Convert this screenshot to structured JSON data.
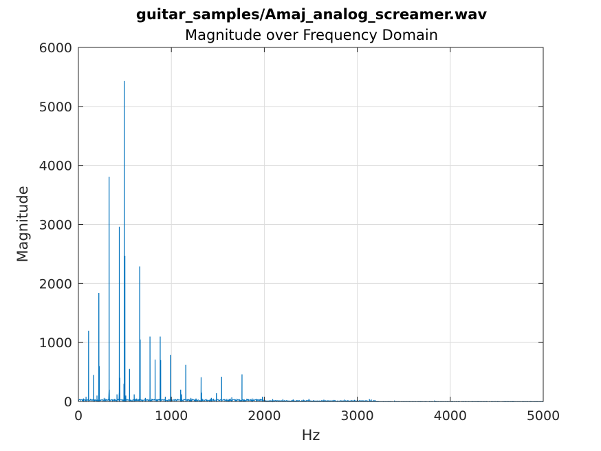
{
  "chart_data": {
    "type": "line",
    "title": "guitar_samples/Amaj_analog_screamer.wav",
    "subtitle": "Magnitude over Frequency Domain",
    "xlabel": "Hz",
    "ylabel": "Magnitude",
    "xlim": [
      0,
      5000
    ],
    "ylim": [
      0,
      6000
    ],
    "xticks": [
      0,
      1000,
      2000,
      3000,
      4000,
      5000
    ],
    "yticks": [
      0,
      1000,
      2000,
      3000,
      4000,
      5000,
      6000
    ],
    "grid": true,
    "series_color": "#0072BD",
    "peaks": [
      {
        "x": 55,
        "y": 50
      },
      {
        "x": 82,
        "y": 80
      },
      {
        "x": 110,
        "y": 1200
      },
      {
        "x": 165,
        "y": 450
      },
      {
        "x": 200,
        "y": 100
      },
      {
        "x": 220,
        "y": 1840
      },
      {
        "x": 225,
        "y": 600
      },
      {
        "x": 277,
        "y": 60
      },
      {
        "x": 330,
        "y": 3810
      },
      {
        "x": 333,
        "y": 200
      },
      {
        "x": 415,
        "y": 120
      },
      {
        "x": 440,
        "y": 2960
      },
      {
        "x": 445,
        "y": 400
      },
      {
        "x": 490,
        "y": 300
      },
      {
        "x": 495,
        "y": 5430
      },
      {
        "x": 500,
        "y": 2470
      },
      {
        "x": 510,
        "y": 100
      },
      {
        "x": 550,
        "y": 550
      },
      {
        "x": 600,
        "y": 120
      },
      {
        "x": 660,
        "y": 2290
      },
      {
        "x": 665,
        "y": 1050
      },
      {
        "x": 720,
        "y": 60
      },
      {
        "x": 770,
        "y": 1100
      },
      {
        "x": 825,
        "y": 710
      },
      {
        "x": 880,
        "y": 1100
      },
      {
        "x": 885,
        "y": 700
      },
      {
        "x": 935,
        "y": 80
      },
      {
        "x": 990,
        "y": 790
      },
      {
        "x": 1100,
        "y": 200
      },
      {
        "x": 1110,
        "y": 120
      },
      {
        "x": 1155,
        "y": 620
      },
      {
        "x": 1210,
        "y": 60
      },
      {
        "x": 1265,
        "y": 50
      },
      {
        "x": 1320,
        "y": 410
      },
      {
        "x": 1325,
        "y": 150
      },
      {
        "x": 1430,
        "y": 60
      },
      {
        "x": 1485,
        "y": 140
      },
      {
        "x": 1540,
        "y": 420
      },
      {
        "x": 1650,
        "y": 70
      },
      {
        "x": 1760,
        "y": 460
      },
      {
        "x": 1870,
        "y": 50
      },
      {
        "x": 1980,
        "y": 80
      },
      {
        "x": 2090,
        "y": 40
      },
      {
        "x": 2200,
        "y": 40
      },
      {
        "x": 2310,
        "y": 35
      },
      {
        "x": 2420,
        "y": 30
      },
      {
        "x": 2480,
        "y": 45
      },
      {
        "x": 2640,
        "y": 30
      },
      {
        "x": 2750,
        "y": 25
      },
      {
        "x": 2860,
        "y": 30
      },
      {
        "x": 2970,
        "y": 25
      },
      {
        "x": 3130,
        "y": 40
      },
      {
        "x": 3150,
        "y": 35
      },
      {
        "x": 3400,
        "y": 15
      },
      {
        "x": 3830,
        "y": 15
      }
    ]
  }
}
